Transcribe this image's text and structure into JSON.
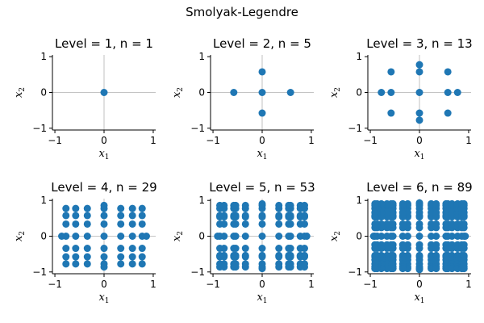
{
  "chart_data": {
    "title": "Smolyak-Legendre",
    "panels": [
      {
        "type": "scatter",
        "title": "Level = 1, n = 1",
        "xlabel": "x",
        "xlabel_sub": "1",
        "ylabel": "x",
        "ylabel_sub": "2",
        "xlim": [
          -1.05,
          1.05
        ],
        "ylim": [
          -1.05,
          1.05
        ],
        "xticks": [
          -1,
          0,
          1
        ],
        "yticks": [
          -1,
          0,
          1
        ],
        "xtick_labels": [
          "−1",
          "0",
          "1"
        ],
        "ytick_labels": [
          "−1",
          "0",
          "1"
        ],
        "grid": true,
        "color": "#1f77b4",
        "nodes": [
          0
        ]
      },
      {
        "type": "scatter",
        "title": "Level = 2, n = 5",
        "xlabel": "x",
        "xlabel_sub": "1",
        "ylabel": "x",
        "ylabel_sub": "2",
        "xlim": [
          -1.05,
          1.05
        ],
        "ylim": [
          -1.05,
          1.05
        ],
        "xticks": [
          -1,
          0,
          1
        ],
        "yticks": [
          -1,
          0,
          1
        ],
        "xtick_labels": [
          "−1",
          "0",
          "1"
        ],
        "ytick_labels": [
          "−1",
          "0",
          "1"
        ],
        "grid": true,
        "color": "#1f77b4",
        "nodes": [
          0,
          0.577,
          -0.577
        ]
      },
      {
        "type": "scatter",
        "title": "Level = 3, n = 13",
        "xlabel": "x",
        "xlabel_sub": "1",
        "ylabel": "x",
        "ylabel_sub": "2",
        "xlim": [
          -1.05,
          1.05
        ],
        "ylim": [
          -1.05,
          1.05
        ],
        "xticks": [
          -1,
          0,
          1
        ],
        "yticks": [
          -1,
          0,
          1
        ],
        "xtick_labels": [
          "−1",
          "0",
          "1"
        ],
        "ytick_labels": [
          "−1",
          "0",
          "1"
        ],
        "grid": true,
        "color": "#1f77b4",
        "nodes": [
          0,
          0.577,
          -0.577,
          0.775,
          -0.775
        ]
      },
      {
        "type": "scatter",
        "title": "Level = 4, n = 29",
        "xlabel": "x",
        "xlabel_sub": "1",
        "ylabel": "x",
        "ylabel_sub": "2",
        "xlim": [
          -1.05,
          1.05
        ],
        "ylim": [
          -1.05,
          1.05
        ],
        "xticks": [
          -1,
          0,
          1
        ],
        "yticks": [
          -1,
          0,
          1
        ],
        "xtick_labels": [
          "−1",
          "0",
          "1"
        ],
        "ytick_labels": [
          "−1",
          "0",
          "1"
        ],
        "grid": true,
        "color": "#1f77b4",
        "nodes": [
          0,
          0.577,
          -0.577,
          0.775,
          -0.775,
          0.34,
          -0.34,
          0.861,
          -0.861
        ]
      },
      {
        "type": "scatter",
        "title": "Level = 5, n = 53",
        "xlabel": "x",
        "xlabel_sub": "1",
        "ylabel": "x",
        "ylabel_sub": "2",
        "xlim": [
          -1.05,
          1.05
        ],
        "ylim": [
          -1.05,
          1.05
        ],
        "xticks": [
          -1,
          0,
          1
        ],
        "yticks": [
          -1,
          0,
          1
        ],
        "xtick_labels": [
          "−1",
          "0",
          "1"
        ],
        "ytick_labels": [
          "−1",
          "0",
          "1"
        ],
        "grid": true,
        "color": "#1f77b4",
        "nodes": [
          0,
          0.577,
          -0.577,
          0.775,
          -0.775,
          0.34,
          -0.34,
          0.861,
          -0.861,
          0.539,
          -0.539,
          0.906,
          -0.906
        ]
      },
      {
        "type": "scatter",
        "title": "Level = 6, n = 89",
        "xlabel": "x",
        "xlabel_sub": "1",
        "ylabel": "x",
        "ylabel_sub": "2",
        "xlim": [
          -1.05,
          1.05
        ],
        "ylim": [
          -1.05,
          1.05
        ],
        "xticks": [
          -1,
          0,
          1
        ],
        "yticks": [
          -1,
          0,
          1
        ],
        "xtick_labels": [
          "−1",
          "0",
          "1"
        ],
        "ytick_labels": [
          "−1",
          "0",
          "1"
        ],
        "grid": true,
        "color": "#1f77b4",
        "nodes": [
          0,
          0.577,
          -0.577,
          0.775,
          -0.775,
          0.34,
          -0.34,
          0.861,
          -0.861,
          0.539,
          -0.539,
          0.906,
          -0.906,
          0.239,
          -0.239,
          0.661,
          -0.661,
          0.932,
          -0.932
        ]
      }
    ]
  }
}
